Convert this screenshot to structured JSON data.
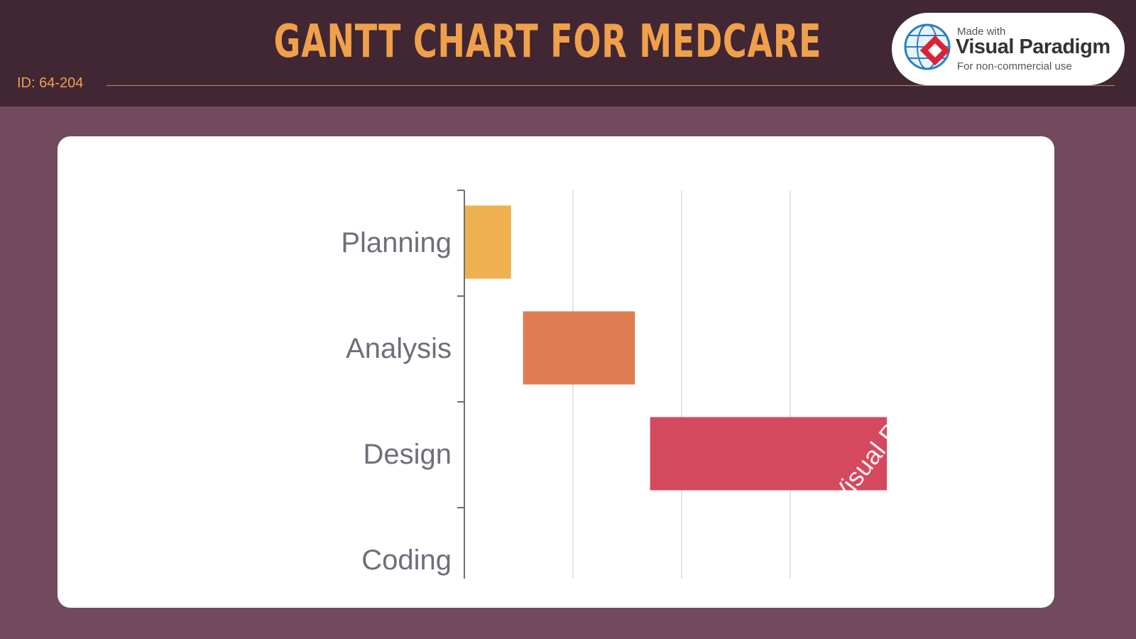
{
  "header": {
    "title": "GANTT CHART FOR MEDCARE",
    "id_label": "ID: 64-204"
  },
  "badge": {
    "made_with": "Made with",
    "brand": "Visual Paradigm",
    "note": "For non-commercial use"
  },
  "watermark": "Visual Paradigm",
  "colors": {
    "header_bg": "#412733",
    "page_bg": "#714a5d",
    "title": "#f0a04b",
    "planning": "#efb04f",
    "analysis": "#e07c52",
    "design": "#d4495e"
  },
  "chart_data": {
    "type": "bar",
    "orientation": "horizontal",
    "categories": [
      "Planning",
      "Analysis",
      "Design",
      "Coding"
    ],
    "tasks": [
      {
        "name": "Planning",
        "start": 0,
        "end": 0.43,
        "color": "#efb04f"
      },
      {
        "name": "Analysis",
        "start": 0.54,
        "end": 1.57,
        "color": "#e07c52"
      },
      {
        "name": "Design",
        "start": 1.71,
        "end": 3.89,
        "color": "#d4495e"
      },
      {
        "name": "Coding",
        "start": null,
        "end": null,
        "color": null
      }
    ],
    "xlim": [
      0,
      4
    ],
    "grid": true,
    "tick_labels_x": []
  }
}
